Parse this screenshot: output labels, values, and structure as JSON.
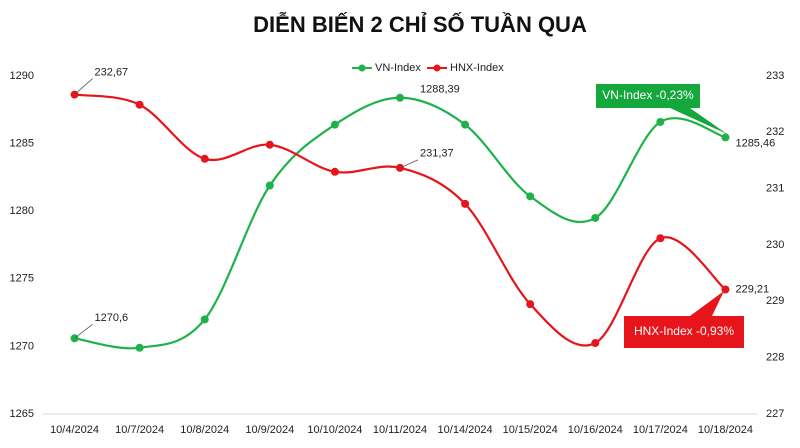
{
  "chart_data": {
    "type": "line",
    "title": "DIỄN BIẾN 2 CHỈ SỐ TUẦN QUA",
    "categories": [
      "10/4/2024",
      "10/7/2024",
      "10/8/2024",
      "10/9/2024",
      "10/10/2024",
      "10/11/2024",
      "10/14/2024",
      "10/15/2024",
      "10/16/2024",
      "10/17/2024",
      "10/18/2024"
    ],
    "series": [
      {
        "name": "VN-Index",
        "color": "#1fb24a",
        "values": [
          1270.6,
          1269.9,
          1272.0,
          1281.9,
          1286.4,
          1288.39,
          1286.4,
          1281.1,
          1279.5,
          1286.6,
          1285.46
        ],
        "value_labels": [
          "1270,6",
          null,
          null,
          null,
          null,
          "1288,39",
          null,
          null,
          null,
          null,
          "1285,46"
        ]
      },
      {
        "name": "HNX-Index",
        "color": "#e8141b",
        "axis": "y2",
        "values": [
          232.67,
          232.49,
          231.53,
          231.78,
          231.3,
          231.37,
          230.73,
          228.95,
          228.26,
          230.12,
          229.21
        ],
        "value_labels": [
          "232,67",
          null,
          null,
          null,
          null,
          "231,37",
          null,
          null,
          null,
          null,
          "229,21"
        ]
      }
    ],
    "ylim": [
      1265,
      1290
    ],
    "yticks": [
      1265,
      1270,
      1275,
      1280,
      1285,
      1290
    ],
    "y2lim": [
      227,
      233
    ],
    "y2ticks": [
      227,
      228,
      229,
      230,
      231,
      232,
      233
    ],
    "legend": "top",
    "annotations": [
      "VN-Index -0,23%",
      "HNX-Index -0,93%"
    ]
  }
}
